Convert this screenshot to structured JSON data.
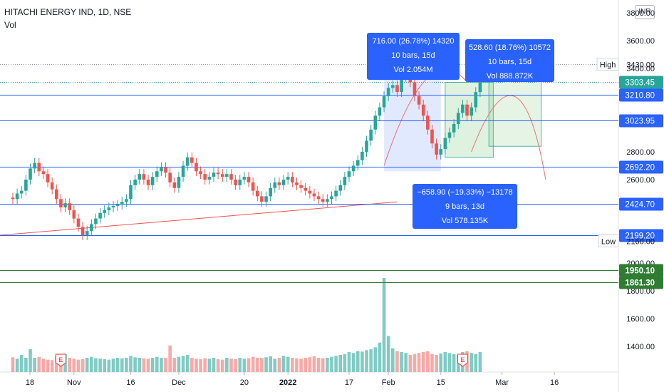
{
  "header": {
    "symbol": "HITACHI ENERGY IND, 1D, NSE",
    "volume_label": "Vol",
    "currency": "INR"
  },
  "chart_data": {
    "type": "candlestick",
    "price_ticks": [
      4000,
      3800,
      3600,
      3400,
      2800,
      2600,
      2000,
      1800,
      1600,
      1400
    ],
    "price_ticks_labels": [
      "4000.00",
      "3800.00",
      "3600.00",
      "3400.00",
      "2800.00",
      "2600.00",
      "2000.00",
      "1800.00",
      "1600.00",
      "1400.00"
    ],
    "x_ticks": [
      "18",
      "Nov",
      "16",
      "Dec",
      "20",
      "2022",
      "17",
      "Feb",
      "15",
      "Mar",
      "16"
    ],
    "x_tick_days": [
      0,
      14,
      27,
      38,
      53,
      63,
      77,
      86,
      98,
      112,
      124
    ],
    "x_tick_bold": [
      false,
      false,
      false,
      false,
      false,
      true,
      false,
      false,
      false,
      false,
      false
    ],
    "levels": [
      {
        "label": "3210.80",
        "price": 3210.8,
        "color": "#2962ff",
        "bold": false
      },
      {
        "label": "3023.95",
        "price": 3023.95,
        "color": "#2962ff",
        "bold": false
      },
      {
        "label": "2692.20",
        "price": 2692.2,
        "color": "#2962ff",
        "bold": false
      },
      {
        "label": "2424.70",
        "price": 2424.7,
        "color": "#2962ff",
        "bold": false
      },
      {
        "label": "2199.20",
        "price": 2199.2,
        "color": "#2962ff",
        "bold": false
      },
      {
        "label": "1950.10",
        "price": 1950.1,
        "color": "#2e7d32",
        "bold": true
      },
      {
        "label": "1861.30",
        "price": 1861.3,
        "color": "#2e7d32",
        "bold": true
      }
    ],
    "high": {
      "label": "High",
      "price": 3430.0,
      "value": "3430.00"
    },
    "low": {
      "label": "Low",
      "price": 2160.0,
      "value": "2160.00"
    },
    "last_price": {
      "value": "3303.45",
      "price": 3303.45
    },
    "measurements": [
      {
        "lines": [
          "716.00 (26.78%) 14320",
          "10 bars, 15d",
          "Vol 2.054M"
        ]
      },
      {
        "lines": [
          "528.60 (18.76%) 10572",
          "10 bars, 15d",
          "Vol 888.872K"
        ]
      },
      {
        "lines": [
          "−658.90 (−19.33%) −13178",
          "9 bars, 13d",
          "Vol 578.135K"
        ]
      }
    ],
    "earnings_marker": "E",
    "up_color": "#26a69a",
    "down_color": "#ef5350",
    "candles": [
      [
        2470,
        2460
      ],
      [
        2460,
        2500
      ],
      [
        2500,
        2520
      ],
      [
        2520,
        2600
      ],
      [
        2600,
        2680
      ],
      [
        2680,
        2720
      ],
      [
        2720,
        2660
      ],
      [
        2660,
        2640
      ],
      [
        2640,
        2580
      ],
      [
        2580,
        2530
      ],
      [
        2530,
        2460
      ],
      [
        2460,
        2400
      ],
      [
        2400,
        2430
      ],
      [
        2430,
        2380
      ],
      [
        2380,
        2320
      ],
      [
        2320,
        2260
      ],
      [
        2260,
        2200
      ],
      [
        2200,
        2230
      ],
      [
        2230,
        2280
      ],
      [
        2280,
        2320
      ],
      [
        2320,
        2360
      ],
      [
        2360,
        2380
      ],
      [
        2380,
        2400
      ],
      [
        2400,
        2410
      ],
      [
        2410,
        2420
      ],
      [
        2420,
        2440
      ],
      [
        2440,
        2460
      ],
      [
        2460,
        2560
      ],
      [
        2560,
        2600
      ],
      [
        2600,
        2640
      ],
      [
        2640,
        2600
      ],
      [
        2600,
        2560
      ],
      [
        2560,
        2620
      ],
      [
        2620,
        2660
      ],
      [
        2660,
        2690
      ],
      [
        2690,
        2650
      ],
      [
        2650,
        2580
      ],
      [
        2580,
        2540
      ],
      [
        2540,
        2620
      ],
      [
        2620,
        2700
      ],
      [
        2700,
        2760
      ],
      [
        2760,
        2720
      ],
      [
        2720,
        2660
      ],
      [
        2660,
        2640
      ],
      [
        2640,
        2600
      ],
      [
        2600,
        2620
      ],
      [
        2620,
        2650
      ],
      [
        2650,
        2640
      ],
      [
        2640,
        2620
      ],
      [
        2620,
        2640
      ],
      [
        2640,
        2600
      ],
      [
        2600,
        2560
      ],
      [
        2560,
        2600
      ],
      [
        2600,
        2620
      ],
      [
        2620,
        2580
      ],
      [
        2580,
        2520
      ],
      [
        2520,
        2480
      ],
      [
        2480,
        2440
      ],
      [
        2440,
        2480
      ],
      [
        2480,
        2540
      ],
      [
        2540,
        2580
      ],
      [
        2580,
        2560
      ],
      [
        2560,
        2600
      ],
      [
        2600,
        2620
      ],
      [
        2620,
        2580
      ],
      [
        2580,
        2560
      ],
      [
        2560,
        2540
      ],
      [
        2540,
        2520
      ],
      [
        2520,
        2500
      ],
      [
        2500,
        2480
      ],
      [
        2480,
        2460
      ],
      [
        2460,
        2440
      ],
      [
        2440,
        2460
      ],
      [
        2460,
        2480
      ],
      [
        2480,
        2520
      ],
      [
        2520,
        2560
      ],
      [
        2560,
        2620
      ],
      [
        2620,
        2660
      ],
      [
        2660,
        2700
      ],
      [
        2700,
        2740
      ],
      [
        2740,
        2800
      ],
      [
        2800,
        2880
      ],
      [
        2880,
        2960
      ],
      [
        2960,
        3060
      ],
      [
        3060,
        3120
      ],
      [
        3120,
        3200
      ],
      [
        3200,
        3260
      ],
      [
        3260,
        3280
      ],
      [
        3280,
        3230
      ],
      [
        3230,
        3340
      ],
      [
        3340,
        3420
      ],
      [
        3420,
        3300
      ],
      [
        3300,
        3200
      ],
      [
        3200,
        3140
      ],
      [
        3140,
        3060
      ],
      [
        3060,
        2960
      ],
      [
        2960,
        2860
      ],
      [
        2860,
        2780
      ],
      [
        2780,
        2820
      ],
      [
        2820,
        2900
      ],
      [
        2900,
        2940
      ],
      [
        2940,
        3000
      ],
      [
        3000,
        3080
      ],
      [
        3080,
        3140
      ],
      [
        3140,
        3060
      ],
      [
        3060,
        3120
      ],
      [
        3120,
        3230
      ],
      [
        3230,
        3300
      ]
    ],
    "volumes": [
      310,
      280,
      360,
      300,
      480,
      300,
      320,
      280,
      260,
      250,
      340,
      360,
      380,
      300,
      280,
      260,
      270,
      300,
      320,
      290,
      280,
      270,
      260,
      280,
      300,
      290,
      300,
      340,
      310,
      300,
      290,
      280,
      300,
      320,
      300,
      300,
      560,
      300,
      320,
      340,
      360,
      300,
      280,
      270,
      290,
      280,
      300,
      270,
      260,
      300,
      280,
      270,
      300,
      280,
      290,
      320,
      300,
      300,
      310,
      330,
      280,
      300,
      340,
      320,
      300,
      290,
      280,
      300,
      310,
      330,
      300,
      290,
      300,
      320,
      340,
      360,
      380,
      420,
      400,
      440,
      430,
      460,
      480,
      520,
      620,
      1980,
      760,
      500,
      440,
      420,
      400,
      360,
      380,
      400,
      420,
      440,
      380,
      360,
      390,
      420,
      400,
      380,
      360,
      420,
      440,
      400,
      380,
      420
    ]
  }
}
